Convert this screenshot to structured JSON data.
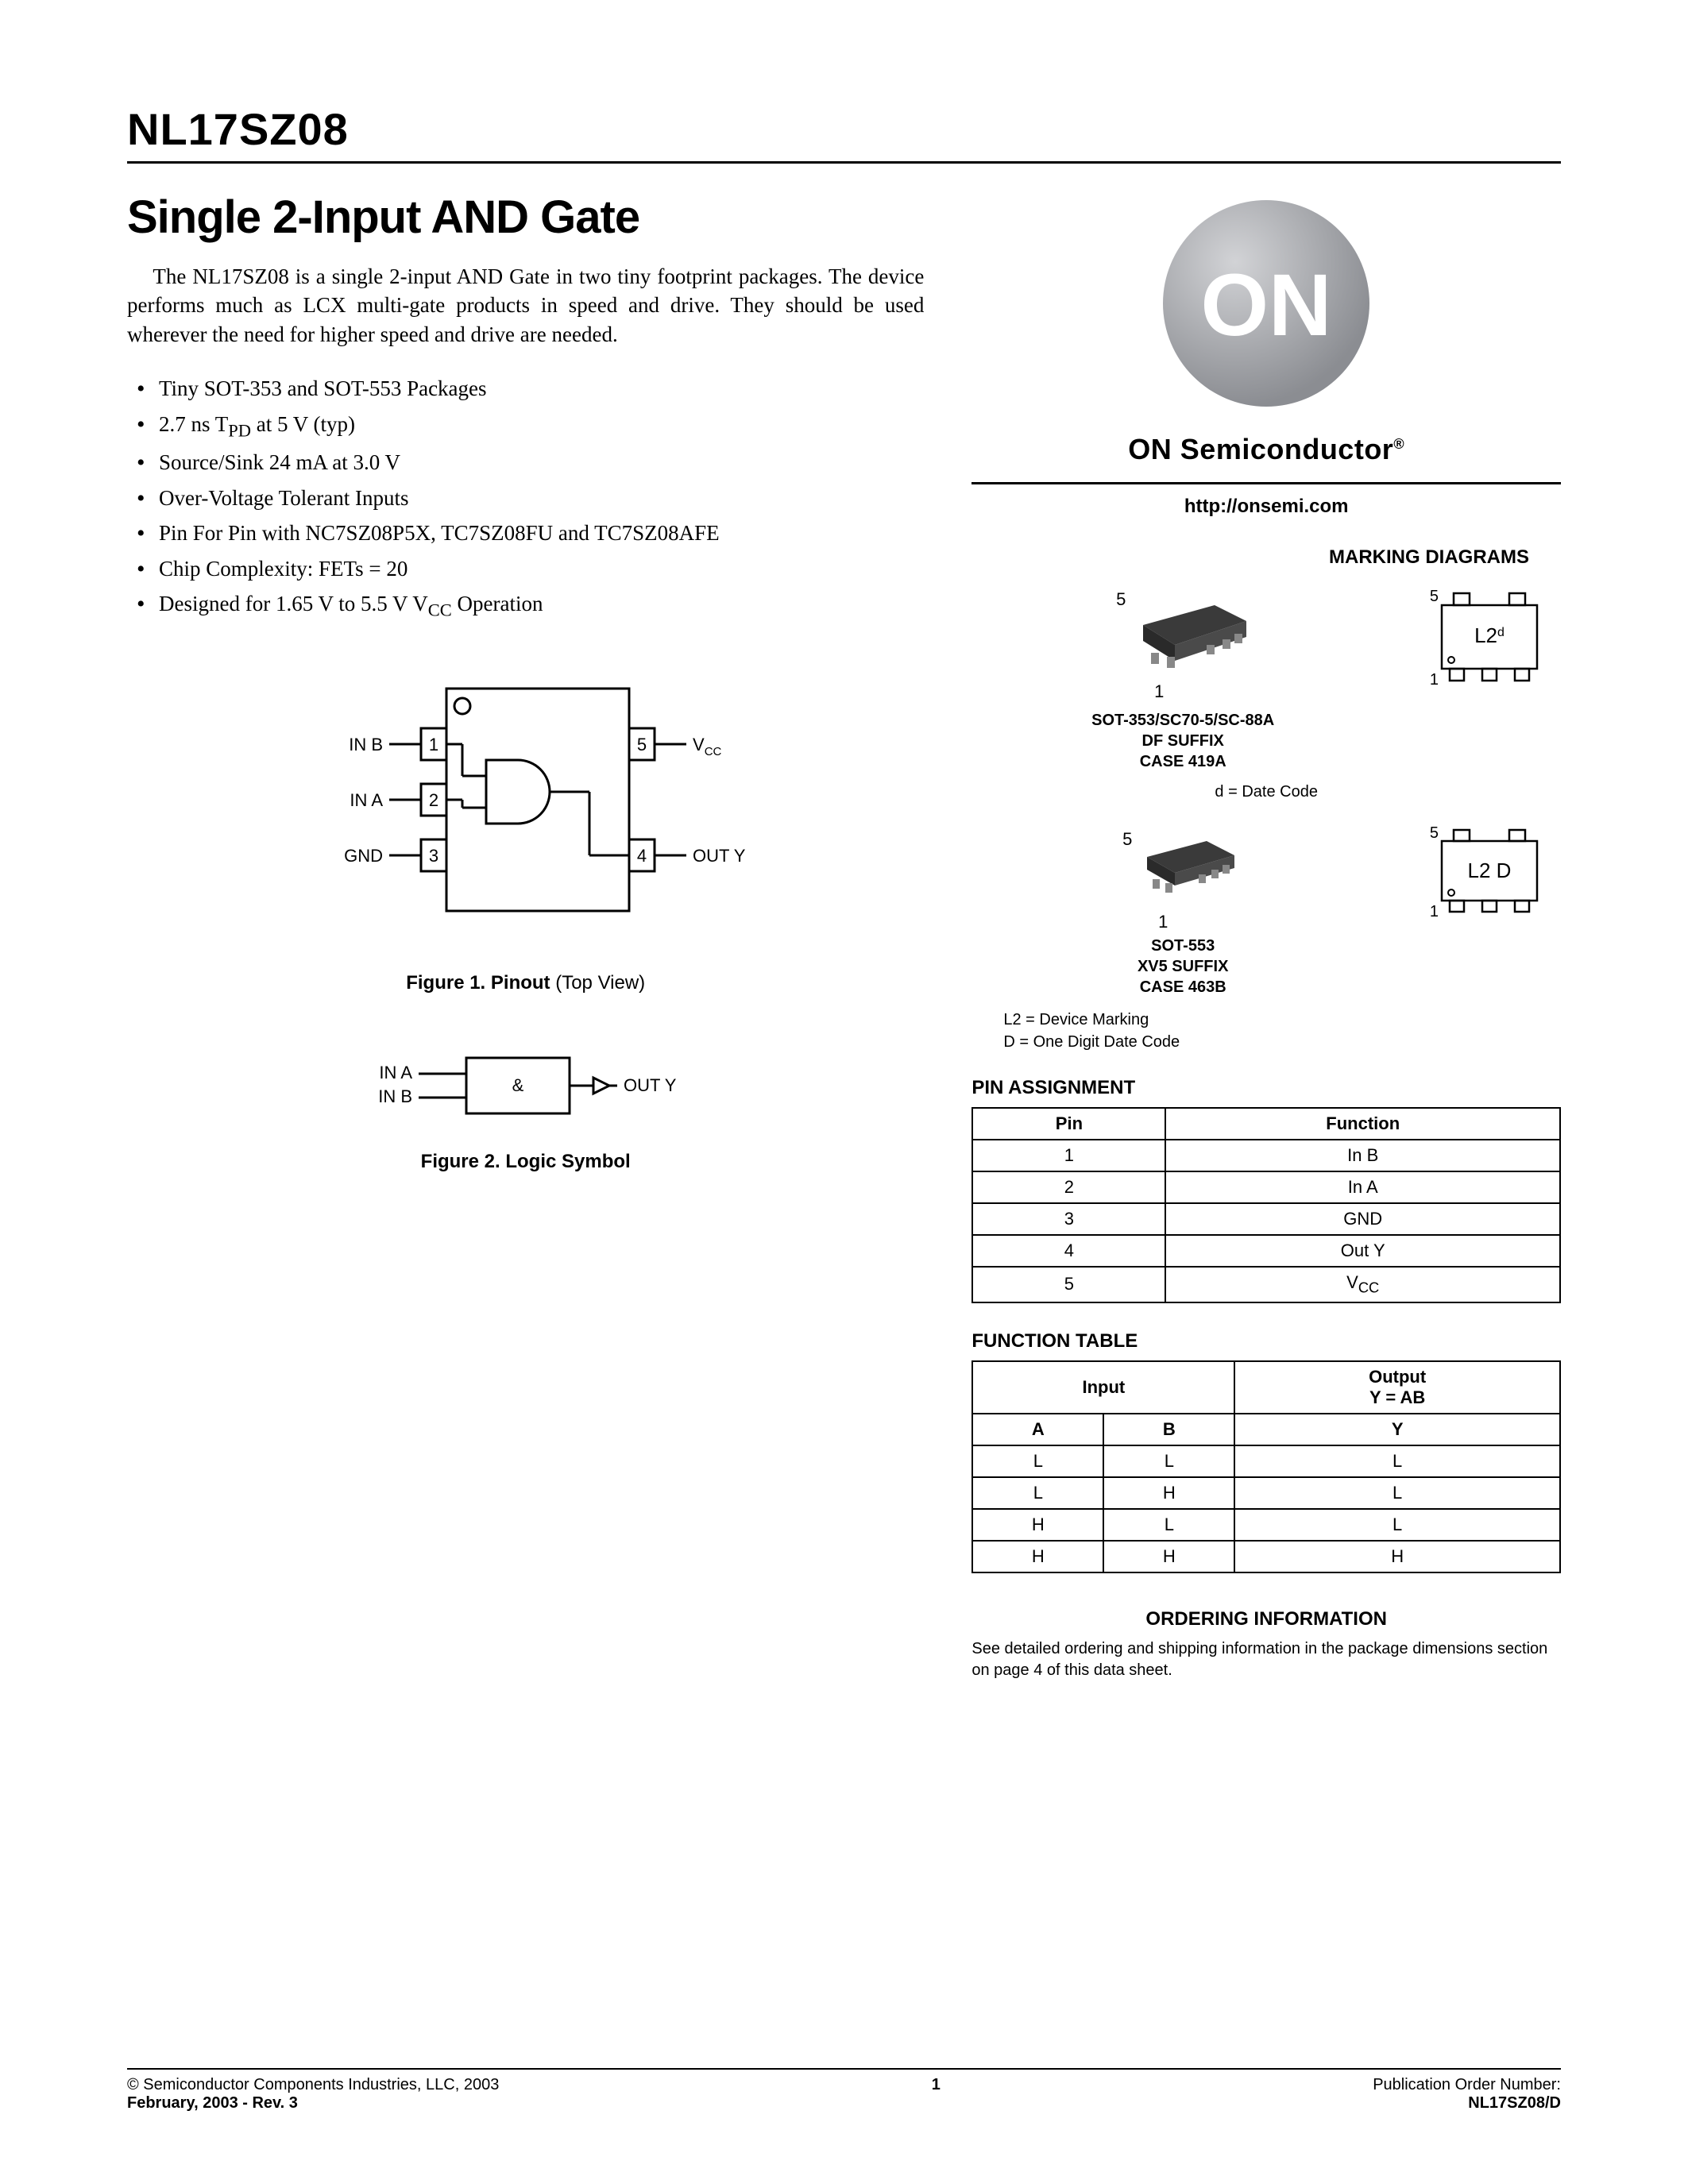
{
  "part_number": "NL17SZ08",
  "title": "Single 2-Input AND Gate",
  "intro": "The NL17SZ08 is a single 2-input AND Gate in two tiny footprint packages. The device performs much as LCX multi-gate products in speed and drive. They should be used wherever the need for higher speed and drive are needed.",
  "bullets": [
    "Tiny SOT-353 and SOT-553 Packages",
    "2.7 ns T<sub>PD</sub> at 5 V (typ)",
    "Source/Sink 24 mA at 3.0 V",
    "Over-Voltage Tolerant Inputs",
    "Pin For Pin with NC7SZ08P5X, TC7SZ08FU and TC7SZ08AFE",
    "Chip Complexity: FETs = 20",
    "Designed for 1.65 V to 5.5 V V<sub>CC</sub> Operation"
  ],
  "figure1": {
    "caption_bold": "Figure 1. Pinout",
    "caption_rest": " (Top View)",
    "pins": {
      "p1": "IN B",
      "p2": "IN A",
      "p3": "GND",
      "p4": "OUT Y",
      "p5": "V",
      "p5_sub": "CC"
    }
  },
  "figure2": {
    "caption_bold": "Figure 2. Logic Symbol",
    "in_a": "IN A",
    "in_b": "IN B",
    "out": "OUT Y",
    "symbol": "&"
  },
  "brand": "ON Semiconductor",
  "brand_logo_text": "ON",
  "url": "http://onsemi.com",
  "marking": {
    "heading": "MARKING DIAGRAMS",
    "pkg1": {
      "lines": [
        "SOT-353/SC70-5/SC-88A",
        "DF SUFFIX",
        "CASE 419A"
      ],
      "pin5": "5",
      "pin1": "1",
      "mark_text": "L2",
      "mark_sup": "d"
    },
    "date_note": "d = Date Code",
    "pkg2": {
      "lines": [
        "SOT-553",
        "XV5 SUFFIX",
        "CASE 463B"
      ],
      "pin5": "5",
      "pin1": "1",
      "mark_text": "L2 D"
    },
    "legend": [
      "L2   = Device Marking",
      "D    = One Digit Date Code"
    ]
  },
  "pin_assignment": {
    "heading": "PIN ASSIGNMENT",
    "headers": [
      "Pin",
      "Function"
    ],
    "rows": [
      [
        "1",
        "In B"
      ],
      [
        "2",
        "In A"
      ],
      [
        "3",
        "GND"
      ],
      [
        "4",
        "Out Y"
      ],
      [
        "5",
        "V<sub>CC</sub>"
      ]
    ]
  },
  "function_table": {
    "heading": "FUNCTION TABLE",
    "input_head": "Input",
    "output_head_line1": "Output",
    "output_head_line2": "Y = AB",
    "sub_headers": [
      "A",
      "B",
      "Y"
    ],
    "rows": [
      [
        "L",
        "L",
        "L"
      ],
      [
        "L",
        "H",
        "L"
      ],
      [
        "H",
        "L",
        "L"
      ],
      [
        "H",
        "H",
        "H"
      ]
    ]
  },
  "ordering": {
    "heading": "ORDERING INFORMATION",
    "note": "See detailed ordering and shipping information in the package dimensions section on page 4 of this data sheet."
  },
  "footer": {
    "copyright": "©  Semiconductor Components Industries, LLC, 2003",
    "date_rev": "February, 2003 - Rev. 3",
    "page": "1",
    "pub_label": "Publication Order Number:",
    "pub_num": "NL17SZ08/D"
  },
  "colors": {
    "logo_sphere": "#9a9ca0",
    "logo_sphere_light": "#d2d3d6",
    "logo_text": "#ffffff",
    "pkg_body": "#3a3a3a",
    "pkg_body_light": "#6b6b6b"
  }
}
